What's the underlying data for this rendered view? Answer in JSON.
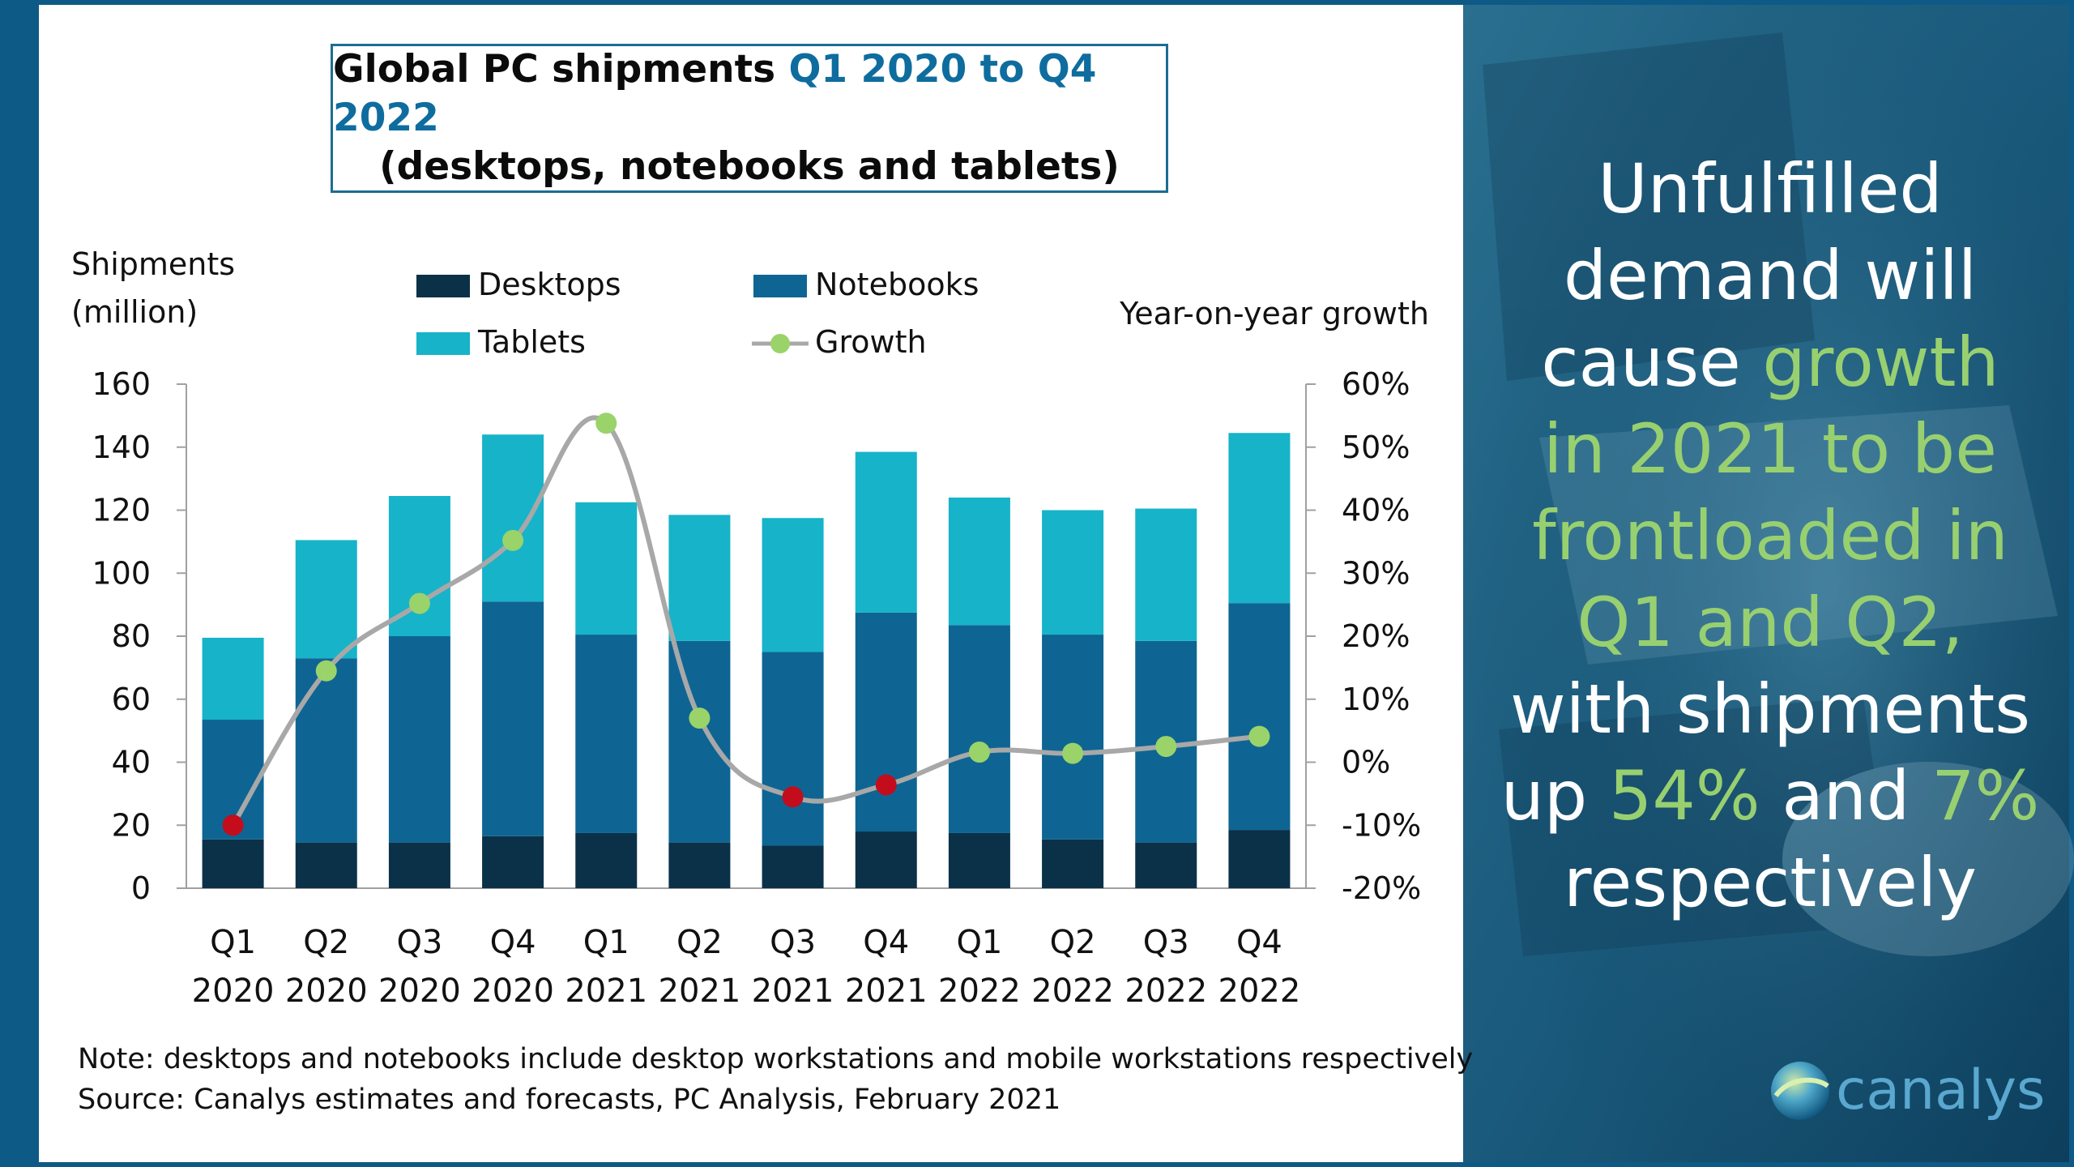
{
  "title": {
    "line1_prefix": "Global PC shipments",
    "line1_highlight": "Q1 2020 to Q4 2022",
    "line2": "(desktops, notebooks and tablets)"
  },
  "colors": {
    "desktops": "#0b3148",
    "notebooks": "#0e6593",
    "tablets": "#17b3c9",
    "growth_line": "#a8a8a8",
    "growth_positive": "#9ad36a",
    "growth_negative": "#c30d1c",
    "highlight_green": "#98d070",
    "accent_blue": "#0e6d9e"
  },
  "chart_data": {
    "type": "bar",
    "stacked": true,
    "categories": [
      "Q1 2020",
      "Q2 2020",
      "Q3 2020",
      "Q4 2020",
      "Q1 2021",
      "Q2 2021",
      "Q3 2021",
      "Q4 2021",
      "Q1 2022",
      "Q2 2022",
      "Q3 2022",
      "Q4 2022"
    ],
    "category_lines": [
      [
        "Q1",
        "2020"
      ],
      [
        "Q2",
        "2020"
      ],
      [
        "Q3",
        "2020"
      ],
      [
        "Q4",
        "2020"
      ],
      [
        "Q1",
        "2021"
      ],
      [
        "Q2",
        "2021"
      ],
      [
        "Q3",
        "2021"
      ],
      [
        "Q4",
        "2021"
      ],
      [
        "Q1",
        "2022"
      ],
      [
        "Q2",
        "2022"
      ],
      [
        "Q3",
        "2022"
      ],
      [
        "Q4",
        "2022"
      ]
    ],
    "series": [
      {
        "name": "Desktops",
        "values": [
          15.5,
          14.5,
          14.5,
          16.5,
          17.5,
          14.5,
          13.5,
          18,
          17.5,
          15.5,
          14.5,
          18.5
        ]
      },
      {
        "name": "Notebooks",
        "values": [
          38,
          58.5,
          65.5,
          74.5,
          63,
          64,
          61.5,
          69.5,
          66,
          65,
          64,
          72
        ]
      },
      {
        "name": "Tablets",
        "values": [
          26,
          37.5,
          44.5,
          53,
          42,
          40,
          42.5,
          51,
          40.5,
          39.5,
          42,
          54
        ]
      }
    ],
    "growth": {
      "name": "Growth",
      "values": [
        -10,
        14.5,
        25.2,
        35.2,
        53.8,
        7,
        -5.5,
        -3.6,
        1.6,
        1.4,
        2.5,
        4.1
      ]
    },
    "ylabel_lines": [
      "Shipments",
      "(million)"
    ],
    "y2label": "Year-on-year growth",
    "ylim": [
      0,
      160
    ],
    "y_ticks": [
      "0",
      "20",
      "40",
      "60",
      "80",
      "100",
      "120",
      "140",
      "160"
    ],
    "y2lim": [
      -20,
      60
    ],
    "y2_ticks": [
      "-20%",
      "-10%",
      "0%",
      "10%",
      "20%",
      "30%",
      "40%",
      "50%",
      "60%"
    ],
    "legend": [
      "Desktops",
      "Notebooks",
      "Tablets",
      "Growth"
    ],
    "legend_position": "top"
  },
  "notes": {
    "note": "Note: desktops and notebooks include desktop workstations and mobile workstations respectively",
    "source": "Source: Canalys estimates and forecasts, PC Analysis, February 2021"
  },
  "callout": {
    "l1": "Unfulfilled",
    "l2": "demand will",
    "l3a": "cause ",
    "l3b": "growth",
    "l4": "in 2021 to be",
    "l5": "frontloaded in",
    "l6": "Q1 and Q2,",
    "l7": "with shipments",
    "l8a": "up ",
    "l8b": "54%",
    "l8c": " and ",
    "l8d": "7%",
    "l9": "respectively"
  },
  "brand": {
    "name": "canalys"
  }
}
